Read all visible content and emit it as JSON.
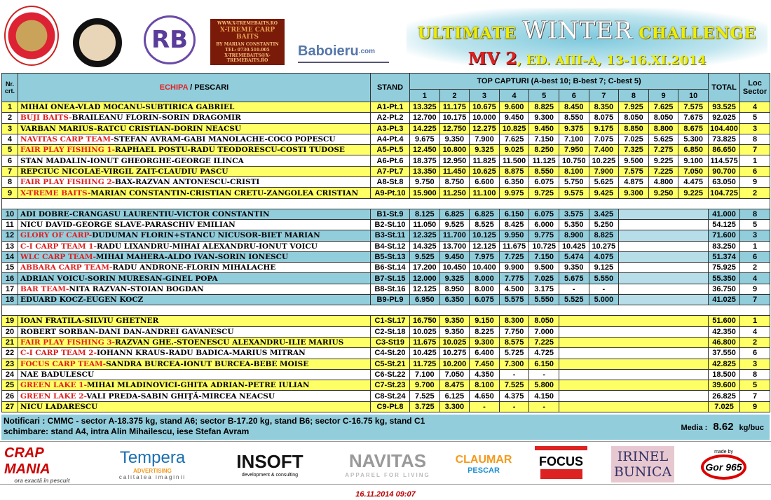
{
  "header": {
    "logos": [
      "LACUL MOARA VLASIEI 2",
      "CARPING CLUB",
      "RB",
      "WWW.X-TREMEBAITS.RO",
      "X-TREME CARP BAITS",
      "BY MARIAN CONSTANTIN",
      "TEL: 0730.510.005",
      "X-TREMEBAITS@X-TREMEBAITS.RO",
      "Baboieru",
      ".com"
    ],
    "title_a": "ULTIMATE ",
    "title_b": "WINTER",
    "title_c": " CHALLENGE",
    "sub_a": "MV 2",
    "sub_b": ", ED. AIII-A, 13-16.XI.2014"
  },
  "table": {
    "h_nr": "Nr. crt.",
    "h_team": "ECHIPA",
    "h_sep": " / ",
    "h_pescari": "PESCARI",
    "h_stand": "STAND",
    "h_top": "TOP CAPTURI (A-best 10; B-best 7; C-best 5)",
    "h_cols": [
      "1",
      "2",
      "3",
      "4",
      "5",
      "6",
      "7",
      "8",
      "9",
      "10"
    ],
    "h_total": "TOTAL",
    "h_loc": "Loc Sector",
    "groups": [
      [
        {
          "nr": "1",
          "team": "",
          "names": "MIHAI ONEA-VLAD MOCANU-SUBTIRICA GABRIEL",
          "stand": "A1-Pt.1",
          "c": [
            "13.325",
            "11.175",
            "10.675",
            "9.600",
            "8.825",
            "8.450",
            "8.350",
            "7.925",
            "7.625",
            "7.575"
          ],
          "total": "93.525",
          "loc": "4"
        },
        {
          "nr": "2",
          "team": "BUJI BAITS",
          "names": "BRAILEANU FLORIN-SORIN DRAGOMIR",
          "stand": "A2-Pt.2",
          "c": [
            "12.700",
            "10.175",
            "10.000",
            "9.450",
            "9.300",
            "8.550",
            "8.075",
            "8.050",
            "8.050",
            "7.675"
          ],
          "total": "92.025",
          "loc": "5"
        },
        {
          "nr": "3",
          "team": "",
          "names": "VARBAN MARIUS-RATCU CRISTIAN-DORIN NEACSU",
          "stand": "A3-Pt.3",
          "c": [
            "14.225",
            "12.750",
            "12.275",
            "10.825",
            "9.450",
            "9.375",
            "9.175",
            "8.850",
            "8.800",
            "8.675"
          ],
          "total": "104.400",
          "loc": "3"
        },
        {
          "nr": "4",
          "team": "NAVITAS CARP TEAM",
          "names": "STEFAN AVRAM-GABI MANOLACHE-COCO POPESCU",
          "stand": "A4-Pt.4",
          "c": [
            "9.675",
            "9.350",
            "7.900",
            "7.625",
            "7.150",
            "7.100",
            "7.075",
            "7.025",
            "5.625",
            "5.300"
          ],
          "total": "73.825",
          "loc": "8"
        },
        {
          "nr": "5",
          "team": "FAIR PLAY FISHING 1",
          "names": "RAPHAEL POSTU-RADU TEODORESCU-COSTI TUDOSE",
          "stand": "A5-Pt.5",
          "c": [
            "12.450",
            "10.800",
            "9.325",
            "9.025",
            "8.250",
            "7.950",
            "7.400",
            "7.325",
            "7.275",
            "6.850"
          ],
          "total": "86.650",
          "loc": "7"
        },
        {
          "nr": "6",
          "team": "",
          "names": "STAN MADALIN-IONUT GHEORGHE-GEORGE ILINCA",
          "stand": "A6-Pt.6",
          "c": [
            "18.375",
            "12.950",
            "11.825",
            "11.500",
            "11.125",
            "10.750",
            "10.225",
            "9.500",
            "9.225",
            "9.100"
          ],
          "total": "114.575",
          "loc": "1"
        },
        {
          "nr": "7",
          "team": "",
          "names": "REPCIUC NICOLAE-VIRGIL ZAIT-CLAUDIU PASCU",
          "stand": "A7-Pt.7",
          "c": [
            "13.350",
            "11.450",
            "10.625",
            "8.875",
            "8.550",
            "8.100",
            "7.900",
            "7.575",
            "7.225",
            "7.050"
          ],
          "total": "90.700",
          "loc": "6"
        },
        {
          "nr": "8",
          "team": "FAIR PLAY FISHING 2",
          "names": "BAX-RAZVAN ANTONESCU-CRISTI",
          "stand": "A8-St.8",
          "c": [
            "9.750",
            "8.750",
            "6.600",
            "6.350",
            "6.075",
            "5.750",
            "5.625",
            "4.875",
            "4.800",
            "4.475"
          ],
          "total": "63.050",
          "loc": "9"
        },
        {
          "nr": "9",
          "team": "X-TREME BAITS",
          "names": "MARIAN CONSTANTIN-CRISTIAN CRETU-ZANGOLEA CRISTIAN",
          "stand": "A9-Pt.10",
          "c": [
            "15.900",
            "11.250",
            "11.100",
            "9.975",
            "9.725",
            "9.575",
            "9.425",
            "9.300",
            "9.250",
            "9.225"
          ],
          "total": "104.725",
          "loc": "2"
        }
      ],
      [
        {
          "nr": "10",
          "team": "",
          "names": "ADI DOBRE-CRANGASU LAURENTIU-VICTOR CONSTANTIN",
          "stand": "B1-St.9",
          "c": [
            "8.125",
            "6.825",
            "6.825",
            "6.150",
            "6.075",
            "3.575",
            "3.425"
          ],
          "total": "41.000",
          "loc": "8"
        },
        {
          "nr": "11",
          "team": "",
          "names": "NICU DAVID-GEORGE SLAVE-PARASCHIV EMILIAN",
          "stand": "B2-St.10",
          "c": [
            "11.050",
            "9.525",
            "8.525",
            "8.425",
            "6.000",
            "5.350",
            "5.250"
          ],
          "total": "54.125",
          "loc": "5"
        },
        {
          "nr": "12",
          "team": "GLORY OF CARP",
          "names": "DUDUMAN FLORIN+STANCU NICUSOR-BIET MARIAN",
          "stand": "B3-St.11",
          "c": [
            "12.325",
            "11.700",
            "10.125",
            "9.950",
            "9.775",
            "8.900",
            "8.825"
          ],
          "total": "71.600",
          "loc": "3"
        },
        {
          "nr": "13",
          "team": "C-I CARP TEAM 1",
          "names": "RADU LIXANDRU-MIHAI ALEXANDRU-IONUT VOICU",
          "stand": "B4-St.12",
          "c": [
            "14.325",
            "13.700",
            "12.125",
            "11.675",
            "10.725",
            "10.425",
            "10.275"
          ],
          "total": "83.250",
          "loc": "1"
        },
        {
          "nr": "14",
          "team": "WLC CARP TEAM",
          "names": "MIHAI MAHERA-ALDO IVAN-SORIN IONESCU",
          "stand": "B5-St.13",
          "c": [
            "9.525",
            "9.450",
            "7.975",
            "7.725",
            "7.150",
            "5.474",
            "4.075"
          ],
          "total": "51.374",
          "loc": "6"
        },
        {
          "nr": "15",
          "team": "ABBARA CARP TEAM",
          "names": "RADU ANDRONE-FLORIN MIHALACHE",
          "stand": "B6-St.14",
          "c": [
            "17.200",
            "10.450",
            "10.400",
            "9.900",
            "9.500",
            "9.350",
            "9.125"
          ],
          "total": "75.925",
          "loc": "2"
        },
        {
          "nr": "16",
          "team": "",
          "names": "ADRIAN VOICU-SORIN MURESAN-GINEL POPA",
          "stand": "B7-St.15",
          "c": [
            "12.000",
            "9.325",
            "8.000",
            "7.775",
            "7.025",
            "5.675",
            "5.550"
          ],
          "total": "55.350",
          "loc": "4"
        },
        {
          "nr": "17",
          "team": "BAR TEAM",
          "names": "NITA RAZVAN-STOIAN BOGDAN",
          "stand": "B8-St.16",
          "c": [
            "12.125",
            "8.950",
            "8.000",
            "4.500",
            "3.175",
            "-",
            "-"
          ],
          "total": "36.750",
          "loc": "9"
        },
        {
          "nr": "18",
          "team": "",
          "names": "EDUARD KOCZ-EUGEN KOCZ",
          "stand": "B9-Pt.9",
          "c": [
            "6.950",
            "6.350",
            "6.075",
            "5.575",
            "5.550",
            "5.525",
            "5.000"
          ],
          "total": "41.025",
          "loc": "7"
        }
      ],
      [
        {
          "nr": "19",
          "team": "",
          "names": "IOAN FRATILA-SILVIU GHETNER",
          "stand": "C1-St.17",
          "c": [
            "16.750",
            "9.350",
            "9.150",
            "8.300",
            "8.050"
          ],
          "total": "51.600",
          "loc": "1"
        },
        {
          "nr": "20",
          "team": "",
          "names": "ROBERT SORBAN-DANI DAN-ANDREI GAVANESCU",
          "stand": "C2-St.18",
          "c": [
            "10.025",
            "9.350",
            "8.225",
            "7.750",
            "7.000"
          ],
          "total": "42.350",
          "loc": "4"
        },
        {
          "nr": "21",
          "team": "FAIR PLAY FISHING 3",
          "names": "RAZVAN GHE.-STOENESCU ALEXANDRU-ILIE MARIUS",
          "stand": "C3-St19",
          "c": [
            "11.675",
            "10.025",
            "9.300",
            "8.575",
            "7.225"
          ],
          "total": "46.800",
          "loc": "2"
        },
        {
          "nr": "22",
          "team": "C-I CARP TEAM 2",
          "names": "IOHANN KRAUS-RADU BADICA-MARIUS MITRAN",
          "stand": "C4-St.20",
          "c": [
            "10.425",
            "10.275",
            "6.400",
            "5.725",
            "4.725"
          ],
          "total": "37.550",
          "loc": "6"
        },
        {
          "nr": "23",
          "team": "FOCUS CARP TEAM",
          "names": "SANDRA BURCEA-IONUT BURCEA-BEBE MOISE",
          "stand": "C5-St.21",
          "c": [
            "11.725",
            "10.200",
            "7.450",
            "7.300",
            "6.150"
          ],
          "total": "42.825",
          "loc": "3"
        },
        {
          "nr": "24",
          "team": "",
          "names": "NAE BADULESCU",
          "stand": "C6-St.22",
          "c": [
            "7.100",
            "7.050",
            "4.350",
            "-",
            "-"
          ],
          "total": "18.500",
          "loc": "8"
        },
        {
          "nr": "25",
          "team": "GREEN LAKE 1",
          "names": "MIHAI MLADINOVICI-GHITA ADRIAN-PETRE IULIAN",
          "stand": "C7-St.23",
          "c": [
            "9.700",
            "8.475",
            "8.100",
            "7.525",
            "5.800"
          ],
          "total": "39.600",
          "loc": "5"
        },
        {
          "nr": "26",
          "team": "GREEN LAKE 2",
          "names": "VALI PREDA-SABIN GHIţă-MIRCEA NEACSU",
          "stand": "C8-St.24",
          "c": [
            "7.525",
            "6.125",
            "4.650",
            "4.375",
            "4.150"
          ],
          "total": "26.825",
          "loc": "7"
        },
        {
          "nr": "27",
          "team": "",
          "names": "NICU LADARESCU",
          "stand": "C9-Pt.8",
          "c": [
            "3.725",
            "3.300",
            "-",
            "-",
            "-"
          ],
          "total": "7.025",
          "loc": "9"
        }
      ]
    ]
  },
  "notes": {
    "line1": "Notificari : CMMC - sector A-18.375 kg, stand A6; sector B-17.20 kg, stand B6; sector C-16.75 kg, stand C1",
    "line2": "schimbare: stand A4, intra Alin Mihailescu, iese Stefan Avram",
    "media_label": "Media :",
    "media_value": "8.62",
    "media_unit": "kg/buc"
  },
  "sponsors": [
    "CRAP MANIA",
    "ora exactă în pescuit",
    "Tempera",
    "ADVERTISING",
    "calitatea imaginii",
    "INSOFT",
    "development & consulting",
    "NAVITAS",
    "APPAREL FOR LIVING",
    "CLAUMAR",
    "PESCAR",
    "FOCUS",
    "IRINEL",
    "BUNICA",
    "made by",
    "Gor 965"
  ],
  "footer": {
    "date": "16.11.2014 09:07"
  },
  "colors": {
    "yellow": "#ffff66",
    "blue": "#92cddc",
    "team_red": "#e02020"
  }
}
